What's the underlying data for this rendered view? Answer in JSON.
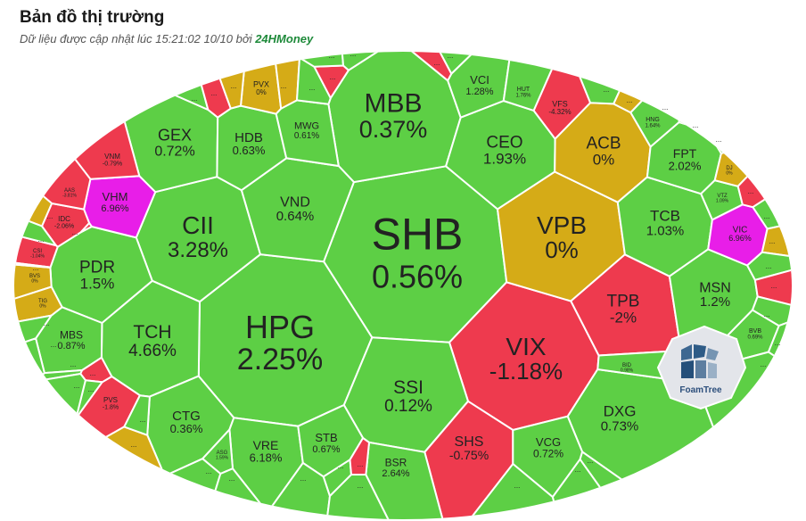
{
  "header": {
    "title": "Bản đồ thị trường",
    "subtitle_prefix": "Dữ liệu được cập nhật lúc 15:21:02 10/10 bởi",
    "brand": "24HMoney"
  },
  "colors": {
    "up": "#5dcf45",
    "down": "#ee3a4e",
    "flat": "#d5ab17",
    "ceiling": "#e81ee8",
    "gap": "#ffffff"
  },
  "logo": {
    "text": "FoamTree"
  },
  "more_label": "...",
  "chart_data": {
    "type": "treemap",
    "title": "Bản đồ thị trường",
    "tiles": [
      {
        "ticker": "SHB",
        "change": "0.56%",
        "status": "up"
      },
      {
        "ticker": "HPG",
        "change": "2.25%",
        "status": "up"
      },
      {
        "ticker": "MBB",
        "change": "0.37%",
        "status": "up"
      },
      {
        "ticker": "VIX",
        "change": "-1.18%",
        "status": "down"
      },
      {
        "ticker": "VPB",
        "change": "0%",
        "status": "flat"
      },
      {
        "ticker": "CII",
        "change": "3.28%",
        "status": "up"
      },
      {
        "ticker": "SSI",
        "change": "0.12%",
        "status": "up"
      },
      {
        "ticker": "TPB",
        "change": "-2%",
        "status": "down"
      },
      {
        "ticker": "TCH",
        "change": "4.66%",
        "status": "up"
      },
      {
        "ticker": "CEO",
        "change": "1.93%",
        "status": "up"
      },
      {
        "ticker": "VND",
        "change": "0.64%",
        "status": "up"
      },
      {
        "ticker": "ACB",
        "change": "0%",
        "status": "flat"
      },
      {
        "ticker": "TCB",
        "change": "1.03%",
        "status": "up"
      },
      {
        "ticker": "GEX",
        "change": "0.72%",
        "status": "up"
      },
      {
        "ticker": "PDR",
        "change": "1.5%",
        "status": "up"
      },
      {
        "ticker": "DXG",
        "change": "0.73%",
        "status": "up"
      },
      {
        "ticker": "SHS",
        "change": "-0.75%",
        "status": "down"
      },
      {
        "ticker": "HDB",
        "change": "0.63%",
        "status": "up"
      },
      {
        "ticker": "MSN",
        "change": "1.2%",
        "status": "up"
      },
      {
        "ticker": "CTG",
        "change": "0.36%",
        "status": "up"
      },
      {
        "ticker": "FPT",
        "change": "2.02%",
        "status": "up"
      },
      {
        "ticker": "VRE",
        "change": "6.18%",
        "status": "up"
      },
      {
        "ticker": "VCG",
        "change": "0.72%",
        "status": "up"
      },
      {
        "ticker": "STB",
        "change": "0.67%",
        "status": "up"
      },
      {
        "ticker": "BSR",
        "change": "2.64%",
        "status": "up"
      },
      {
        "ticker": "VCI",
        "change": "1.28%",
        "status": "up"
      },
      {
        "ticker": "VHM",
        "change": "6.96%",
        "status": "ceiling"
      },
      {
        "ticker": "MBS",
        "change": "0.87%",
        "status": "up"
      },
      {
        "ticker": "MWG",
        "change": "0.61%",
        "status": "up"
      },
      {
        "ticker": "VIC",
        "change": "6.96%",
        "status": "ceiling"
      },
      {
        "ticker": "VFS",
        "change": "-4.32%",
        "status": "down"
      },
      {
        "ticker": "HUT",
        "change": "1.76%",
        "status": "up"
      },
      {
        "ticker": "HNG",
        "change": "1.64%",
        "status": "up"
      },
      {
        "ticker": "BVB",
        "change": "0.69%",
        "status": "up"
      },
      {
        "ticker": "VNM",
        "change": "-0.79%",
        "status": "down"
      },
      {
        "ticker": "PVX",
        "change": "0%",
        "status": "flat"
      },
      {
        "ticker": "IDC",
        "change": "-2.06%",
        "status": "down"
      },
      {
        "ticker": "PVS",
        "change": "-1.8%",
        "status": "down"
      },
      {
        "ticker": "BID",
        "change": "0.98%",
        "status": "up"
      },
      {
        "ticker": "AAS",
        "change": "-3.81%",
        "status": "down"
      },
      {
        "ticker": "VTZ",
        "change": "1.09%",
        "status": "up"
      },
      {
        "ticker": "ASG",
        "change": "1.59%",
        "status": "up"
      },
      {
        "ticker": "DJ",
        "change": "0%",
        "status": "flat"
      },
      {
        "ticker": "CSI",
        "change": "-1.04%",
        "status": "down"
      },
      {
        "ticker": "BVS",
        "change": "0%",
        "status": "flat"
      },
      {
        "ticker": "TIG",
        "change": "0%",
        "status": "flat"
      }
    ],
    "small_tiles": [
      "up",
      "down",
      "flat",
      "flat",
      "up",
      "down",
      "up",
      "up",
      "down",
      "up",
      "up",
      "flat",
      "down",
      "up",
      "up",
      "down",
      "up",
      "flat",
      "up",
      "down",
      "up",
      "up",
      "up",
      "down",
      "flat",
      "up",
      "down",
      "up",
      "up",
      "up",
      "down",
      "up",
      "up",
      "flat",
      "up",
      "up",
      "up",
      "up",
      "up",
      "down",
      "up",
      "up",
      "up",
      "up"
    ]
  }
}
